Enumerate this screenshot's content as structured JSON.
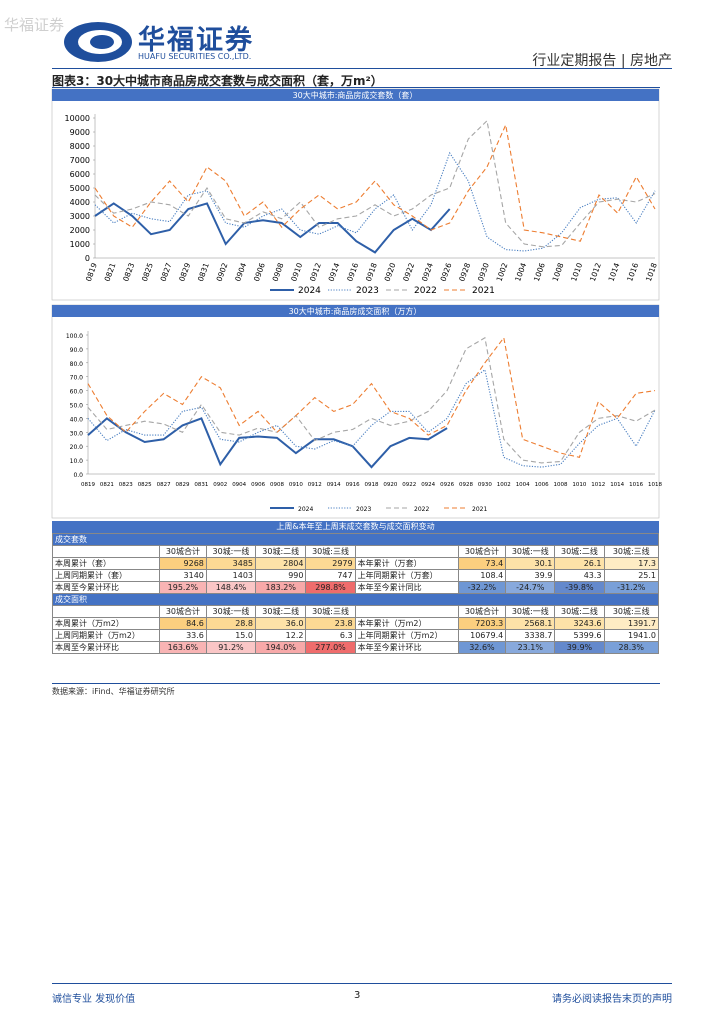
{
  "header": {
    "watermark": "华福证券",
    "logo": "华福证券",
    "logo_en": "HUAFU SECURITIES CO.,LTD.",
    "report": "行业定期报告 | 房地产"
  },
  "figure_title": "图表3：30大中城市商品房成交套数与成交面积（套，万m²）",
  "chart_data": [
    {
      "type": "line",
      "title": "30大中城市:商品房成交套数（套）",
      "categories": [
        "0819",
        "0821",
        "0823",
        "0825",
        "0827",
        "0829",
        "0831",
        "0902",
        "0904",
        "0906",
        "0908",
        "0910",
        "0912",
        "0914",
        "0916",
        "0918",
        "0920",
        "0922",
        "0924",
        "0926",
        "0928",
        "0930",
        "1002",
        "1004",
        "1006",
        "1008",
        "1010",
        "1012",
        "1014",
        "1016",
        "1018"
      ],
      "ylim": [
        0,
        10000
      ],
      "yticks": [
        0,
        1000,
        2000,
        3000,
        4000,
        5000,
        6000,
        7000,
        8000,
        9000,
        10000
      ],
      "legend": "bottom",
      "rotate_labels": true,
      "series": [
        {
          "name": "2024",
          "color": "#2e5fa8",
          "style": "solid",
          "values": [
            3000,
            3900,
            3000,
            1700,
            2000,
            3500,
            3900,
            1000,
            2500,
            2700,
            2500,
            1500,
            2500,
            2500,
            1200,
            400,
            2000,
            2800,
            2000,
            3500,
            null,
            null,
            null,
            null,
            null,
            null,
            null,
            null,
            null,
            null,
            null
          ]
        },
        {
          "name": "2023",
          "color": "#4a7fc1",
          "style": "dotted",
          "values": [
            3800,
            2500,
            3200,
            2800,
            2600,
            4500,
            4800,
            2500,
            2200,
            3000,
            3500,
            2000,
            1700,
            2300,
            1800,
            3500,
            4500,
            2000,
            3800,
            7500,
            5500,
            1500,
            600,
            500,
            700,
            1800,
            3600,
            4200,
            4300,
            2500,
            4800
          ]
        },
        {
          "name": "2022",
          "color": "#a6a6a6",
          "style": "dashed",
          "values": [
            4500,
            3200,
            3500,
            4000,
            3800,
            3000,
            5000,
            2800,
            2500,
            3300,
            2800,
            4000,
            2200,
            2800,
            3000,
            3800,
            3000,
            3500,
            4500,
            5000,
            8500,
            9800,
            2500,
            1000,
            800,
            900,
            2500,
            4000,
            4200,
            4000,
            4600
          ]
        },
        {
          "name": "2021",
          "color": "#ed7d31",
          "style": "dashed",
          "values": [
            5000,
            3000,
            2200,
            4000,
            5500,
            4000,
            6500,
            5500,
            3000,
            4000,
            2200,
            3500,
            4500,
            3500,
            4000,
            5500,
            3800,
            3000,
            2000,
            2500,
            4800,
            6500,
            9500,
            2000,
            1800,
            1500,
            1200,
            4500,
            3200,
            5800,
            3500
          ]
        }
      ]
    },
    {
      "type": "line",
      "title": "30大中城市:商品房成交面积（万方）",
      "categories": [
        "0819",
        "0821",
        "0823",
        "0825",
        "0827",
        "0829",
        "0831",
        "0902",
        "0904",
        "0906",
        "0908",
        "0910",
        "0912",
        "0914",
        "0916",
        "0918",
        "0920",
        "0922",
        "0924",
        "0926",
        "0928",
        "0930",
        "1002",
        "1004",
        "1006",
        "1008",
        "1010",
        "1012",
        "1014",
        "1016",
        "1018"
      ],
      "ylim": [
        0,
        100
      ],
      "yticks": [
        {
          "value": 0,
          "label": "0.0"
        },
        {
          "value": 10,
          "label": "10.0"
        },
        {
          "value": 20,
          "label": "20.0"
        },
        {
          "value": 30,
          "label": "30.0"
        },
        {
          "value": 40,
          "label": "40.0"
        },
        {
          "value": 50,
          "label": "50.0"
        },
        {
          "value": 60,
          "label": "60.0"
        },
        {
          "value": 70,
          "label": "70.0"
        },
        {
          "value": 80,
          "label": "80.0"
        },
        {
          "value": 90,
          "label": "90.0"
        },
        {
          "value": 100,
          "label": "100.0"
        }
      ],
      "legend": "bottom",
      "rotate_labels": false,
      "series": [
        {
          "name": "2024",
          "color": "#2e5fa8",
          "style": "solid",
          "values": [
            28,
            40,
            30,
            23,
            25,
            35,
            40,
            7,
            26,
            27,
            26,
            15,
            25,
            25,
            20,
            5,
            20,
            26,
            25,
            33,
            null,
            null,
            null,
            null,
            null,
            null,
            null,
            null,
            null,
            null,
            null
          ]
        },
        {
          "name": "2023",
          "color": "#4a7fc1",
          "style": "dotted",
          "values": [
            40,
            24,
            32,
            28,
            28,
            45,
            48,
            25,
            23,
            30,
            35,
            20,
            18,
            24,
            20,
            35,
            45,
            45,
            30,
            40,
            65,
            75,
            12,
            6,
            5,
            7,
            22,
            35,
            40,
            20,
            46
          ]
        },
        {
          "name": "2022",
          "color": "#a6a6a6",
          "style": "dashed",
          "values": [
            48,
            32,
            35,
            38,
            36,
            30,
            50,
            30,
            28,
            33,
            30,
            42,
            24,
            30,
            32,
            40,
            35,
            38,
            45,
            60,
            90,
            98,
            25,
            10,
            8,
            9,
            30,
            40,
            42,
            38,
            46
          ]
        },
        {
          "name": "2021",
          "color": "#ed7d31",
          "style": "dashed",
          "values": [
            65,
            42,
            30,
            45,
            58,
            50,
            70,
            62,
            35,
            45,
            30,
            42,
            55,
            45,
            50,
            65,
            45,
            40,
            28,
            35,
            60,
            80,
            98,
            25,
            20,
            15,
            12,
            52,
            40,
            58,
            60
          ]
        }
      ]
    }
  ],
  "table": {
    "title": "上周&本年至上周末成交套数与成交面积变动",
    "sections": [
      {
        "name": "成交套数",
        "columns": [
          "30城合计",
          "30城:一线",
          "30城:二线",
          "30城:三线"
        ],
        "rows": [
          [
            "本周累计（套）",
            "9268",
            "3485",
            "2804",
            "2979",
            "本年累计（万套）",
            "73.4",
            "30.1",
            "26.1",
            "17.3"
          ],
          [
            "上周同期累计（套）",
            "3140",
            "1403",
            "990",
            "747",
            "上年同期累计（万套）",
            "108.4",
            "39.9",
            "43.3",
            "25.1"
          ],
          [
            "本周至今累计环比",
            "195.2%",
            "148.4%",
            "183.2%",
            "298.8%",
            "本年至今累计同比",
            "-32.2%",
            "-24.7%",
            "-39.8%",
            "-31.2%"
          ]
        ]
      },
      {
        "name": "成交面积",
        "columns": [
          "30城合计",
          "30城:一线",
          "30城:二线",
          "30城:三线"
        ],
        "rows": [
          [
            "本周累计（万m2）",
            "84.6",
            "28.8",
            "36.0",
            "23.8",
            "本年累计（万m2）",
            "7203.3",
            "2568.1",
            "3243.6",
            "1391.7"
          ],
          [
            "上周同期累计（万m2）",
            "33.6",
            "15.0",
            "12.2",
            "6.3",
            "上年同期累计（万m2）",
            "10679.4",
            "3338.7",
            "5399.6",
            "1941.0"
          ],
          [
            "本周至今累计环比",
            "163.6%",
            "91.2%",
            "194.0%",
            "277.0%",
            "本年至今累计环比",
            "32.6%",
            "23.1%",
            "39.9%",
            "28.3%"
          ]
        ]
      }
    ]
  },
  "source": "数据来源：iFind、华福证券研究所",
  "footer": {
    "left": "诚信专业  发现价值",
    "page": "3",
    "right": "请务必阅读报告末页的声明"
  }
}
